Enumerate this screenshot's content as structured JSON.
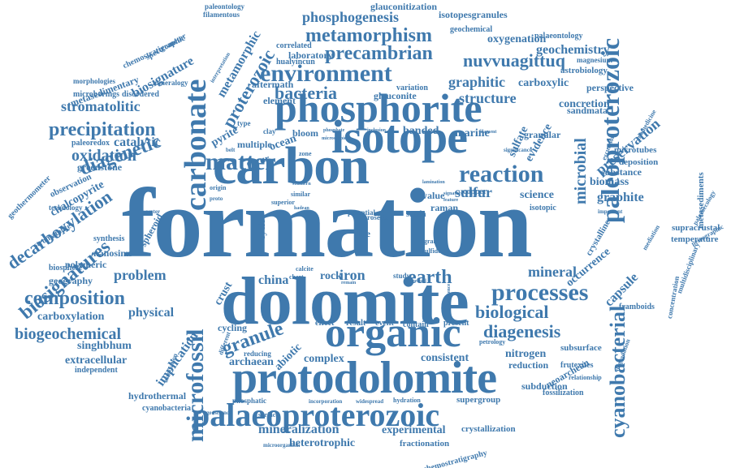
{
  "colors": {
    "word": "#3f79ad",
    "background": "#ffffff"
  },
  "words": [
    "formation",
    "dolomite",
    "carbon",
    "isotope",
    "phosphorite",
    "protodolomite",
    "organic",
    "palaeoproterozoic",
    "paleoproterozoic",
    "microfossil",
    "carbonate",
    "matter",
    "processes",
    "cyanobacterial",
    "environment",
    "metamorphism",
    "precambrian",
    "phosphogenesis",
    "bacteria",
    "reaction",
    "diagenetic",
    "composition",
    "precipitation",
    "earth",
    "biological",
    "diagenesis",
    "granule",
    "proterozoic",
    "decarboxylation",
    "biosignatures",
    "stromatolitic",
    "oxidation",
    "biogeochemical",
    "mineralization",
    "heterotrophic",
    "experimental",
    "nuvvuagittuq",
    "geochemistry",
    "graphitic",
    "structure",
    "sulfur",
    "carboxylation",
    "metamorphic",
    "biosignature",
    "catalytic",
    "chalcopyrite",
    "extracellular",
    "singhbhum",
    "implication",
    "nitrogen",
    "subduction",
    "crust",
    "mineral",
    "capsule",
    "microbial",
    "preservation",
    "graphite",
    "biomass",
    "sulfate",
    "evidence",
    "science",
    "problem",
    "physical",
    "greenstone",
    "geography",
    "pyrite",
    "banded",
    "marine",
    "concretion",
    "sandmata",
    "carboxylic",
    "granular",
    "occurrence",
    "crystalline",
    "substance",
    "deposition",
    "microtubes",
    "supracrustal",
    "temperature",
    "metasediments",
    "palaeontology",
    "glauconitization",
    "isotopesgranules",
    "oxygenation",
    "astrobiology",
    "magnesium",
    "perspective",
    "chemostratigraphy",
    "neoarchean",
    "reduction",
    "fossilization",
    "frutexites",
    "framboids",
    "cyanobacteria",
    "hydrothermal",
    "fractionation",
    "crystallization",
    "supergroup",
    "consistent",
    "complex",
    "archaean",
    "abiotic",
    "cycling",
    "china",
    "iron",
    "rock",
    "ocean",
    "occur",
    "multiple",
    "bloom",
    "aftermath",
    "glauconite",
    "laboratory",
    "correlated",
    "hualyincun",
    "nanosims",
    "polymeric",
    "biosphere",
    "synthesis",
    "stromatolite",
    "spheroid",
    "observation",
    "technology",
    "geothermometer",
    "paleoredox",
    "metasedimentary",
    "microborings",
    "morphologies",
    "disordered",
    "mineralogy",
    "spectrometer",
    "paleontology",
    "filamentous",
    "geochemical",
    "interpretation",
    "variation",
    "value",
    "raman",
    "isotopic",
    "copper",
    "cycle",
    "life",
    "present",
    "event",
    "result",
    "effect",
    "contain",
    "independent",
    "association",
    "reducing",
    "different",
    "phosphatic",
    "surface",
    "geoscience",
    "microorganism",
    "incorporation",
    "widespread",
    "hydration",
    "petrology",
    "relationship",
    "subsurface",
    "degradation",
    "important",
    "excursion",
    "concentration",
    "palaeoecology",
    "petrographic",
    "mediation",
    "multidisciplinary",
    "biomedicine",
    "chemostratigraphic",
    "palaeontology",
    "mineralogy",
    "condition",
    "pattern",
    "deposit",
    "influence",
    "negative",
    "sr/86sr",
    "geology",
    "element",
    "clay",
    "type",
    "belt",
    "zone",
    "origin",
    "proto",
    "water",
    "surda",
    "potential",
    "rosette",
    "calcite",
    "chert",
    "study",
    "grain",
    "sulfide",
    "record",
    "signature",
    "feature",
    "superior",
    "similar",
    "hadean",
    "southern",
    "remain",
    "presence",
    "lamination",
    "phosphate",
    "microscopic",
    "inclusion",
    "filament",
    "significance"
  ]
}
